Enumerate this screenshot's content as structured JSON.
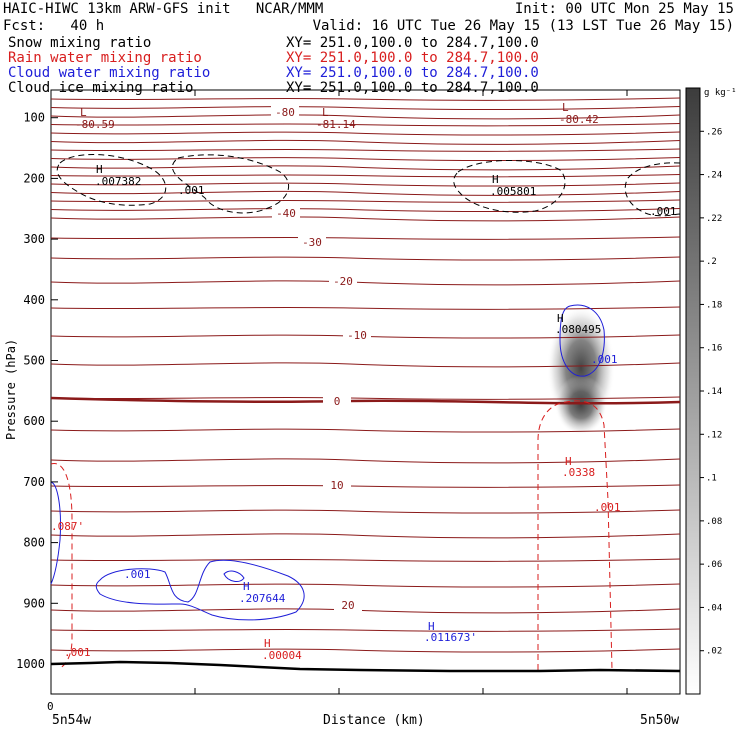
{
  "header": {
    "line1_left": "HAIC-HIWC 13km ARW-GFS init   NCAR/MMM",
    "line1_right": "Init: 00 UTC Mon 25 May 15",
    "fcst": "Fcst:   40 h",
    "valid": "Valid: 16 UTC Tue 26 May 15 (13 LST Tue 26 May 15)"
  },
  "fields": [
    {
      "name": "Snow mixing ratio",
      "xy": "XY= 251.0,100.0 to 284.7,100.0",
      "color": "#000000"
    },
    {
      "name": "Rain water mixing ratio",
      "xy": "XY= 251.0,100.0 to 284.7,100.0",
      "color": "#d81e1e"
    },
    {
      "name": "Cloud water mixing ratio",
      "xy": "XY= 251.0,100.0 to 284.7,100.0",
      "color": "#1e1ed8"
    },
    {
      "name": "Cloud ice mixing ratio",
      "xy": "XY= 251.0,100.0 to 284.7,100.0",
      "color": "#000000"
    }
  ],
  "chart_data": {
    "type": "contour cross-section",
    "ylabel": "Pressure (hPa)",
    "xlabel": "Distance (km)",
    "y_ticks": [
      100,
      200,
      300,
      400,
      500,
      600,
      700,
      800,
      900,
      1000
    ],
    "x_tick_start": "0",
    "x_left_label": "5n54w",
    "x_right_label": "5n50w",
    "colorbar": {
      "unit": "g kg⁻¹",
      "ticks": [
        ".26",
        ".24",
        ".22",
        ".2",
        ".18",
        ".16",
        ".14",
        ".12",
        ".1",
        ".08",
        ".06",
        ".04",
        ".02"
      ],
      "range": [
        0,
        0.28
      ]
    },
    "temperature_labels": [
      "-80.59",
      "-80",
      "-81.14",
      "-80.42",
      "-40",
      "-30",
      "-20",
      "-10",
      "0",
      "10",
      "20"
    ],
    "annotations": [
      {
        "text": "L",
        "color": "#8b1a1a"
      },
      {
        "text": "-80.59",
        "color": "#8b1a1a"
      },
      {
        "text": "L",
        "color": "#8b1a1a"
      },
      {
        "text": "-81.14",
        "color": "#8b1a1a"
      },
      {
        "text": "L",
        "color": "#8b1a1a"
      },
      {
        "text": "-80.42",
        "color": "#8b1a1a"
      },
      {
        "text": "H",
        "color": "#000000"
      },
      {
        "text": ".007382",
        "color": "#000000"
      },
      {
        "text": ".001",
        "color": "#000000"
      },
      {
        "text": "H",
        "color": "#000000"
      },
      {
        "text": ".005801",
        "color": "#000000"
      },
      {
        "text": ".001",
        "color": "#000000"
      },
      {
        "text": "H",
        "color": "#000000"
      },
      {
        "text": ".080495",
        "color": "#000000"
      },
      {
        "text": ".001",
        "color": "#1e1ed8"
      },
      {
        "text": "H",
        "color": "#d81e1e"
      },
      {
        "text": ".0338",
        "color": "#d81e1e"
      },
      {
        "text": ".001",
        "color": "#d81e1e"
      },
      {
        "text": ".087'",
        "color": "#d81e1e"
      },
      {
        "text": ".001",
        "color": "#d81e1e"
      },
      {
        "text": "H",
        "color": "#d81e1e"
      },
      {
        "text": ".00004",
        "color": "#d81e1e"
      },
      {
        "text": ".001",
        "color": "#1e1ed8"
      },
      {
        "text": "H",
        "color": "#1e1ed8"
      },
      {
        "text": ".207644",
        "color": "#1e1ed8"
      },
      {
        "text": "H",
        "color": "#1e1ed8"
      },
      {
        "text": ".011673'",
        "color": "#1e1ed8"
      }
    ]
  }
}
